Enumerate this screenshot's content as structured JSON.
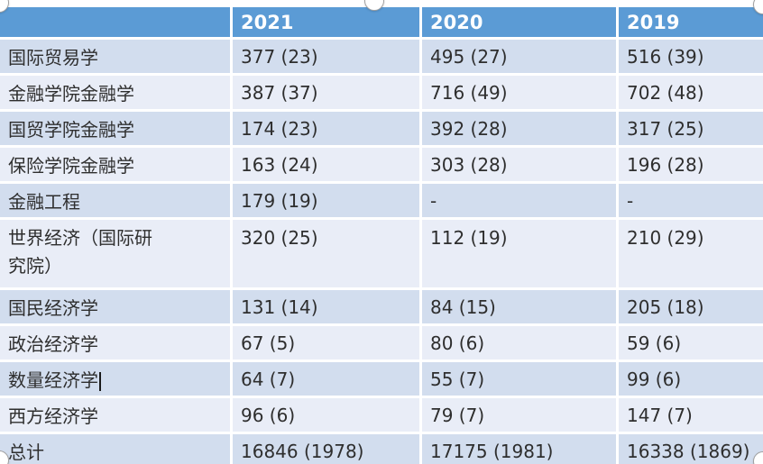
{
  "colors": {
    "header_bg": "#5B9BD5",
    "header_text": "#FFFFFF",
    "row_band_dark": "#D2DDEE",
    "row_band_light": "#E9EDF7",
    "body_text": "#2E2E2E",
    "grid_line": "#FFFFFF"
  },
  "table": {
    "columns": [
      "",
      "2021",
      "2020",
      "2019"
    ],
    "rows": [
      {
        "label": "国际贸易学",
        "values": [
          "377 (23)",
          "495 (27)",
          "516 (39)"
        ]
      },
      {
        "label": "金融学院金融学",
        "values": [
          "387 (37)",
          "716 (49)",
          "702 (48)"
        ]
      },
      {
        "label": "国贸学院金融学",
        "values": [
          "174 (23)",
          "392 (28)",
          "317 (25)"
        ]
      },
      {
        "label": "保险学院金融学",
        "values": [
          "163 (24)",
          "303 (28)",
          "196 (28)"
        ]
      },
      {
        "label": "金融工程",
        "values": [
          "179 (19)",
          "-",
          "-"
        ]
      },
      {
        "label": "世界经济（国际研究院）",
        "values": [
          "320 (25)",
          "112 (19)",
          "210 (29)"
        ]
      },
      {
        "label": "国民经济学",
        "values": [
          "131 (14)",
          "84 (15)",
          "205 (18)"
        ]
      },
      {
        "label": "政治经济学",
        "values": [
          "67 (5)",
          "80 (6)",
          "59 (6)"
        ]
      },
      {
        "label": "数量经济学",
        "values": [
          "64 (7)",
          "55 (7)",
          "99 (6)"
        ],
        "caret": true
      },
      {
        "label": "西方经济学",
        "values": [
          "96 (6)",
          "79 (7)",
          "147 (7)"
        ]
      },
      {
        "label": "总计",
        "values": [
          "16846 (1978)",
          "17175 (1981)",
          "16338 (1869)"
        ]
      }
    ]
  }
}
